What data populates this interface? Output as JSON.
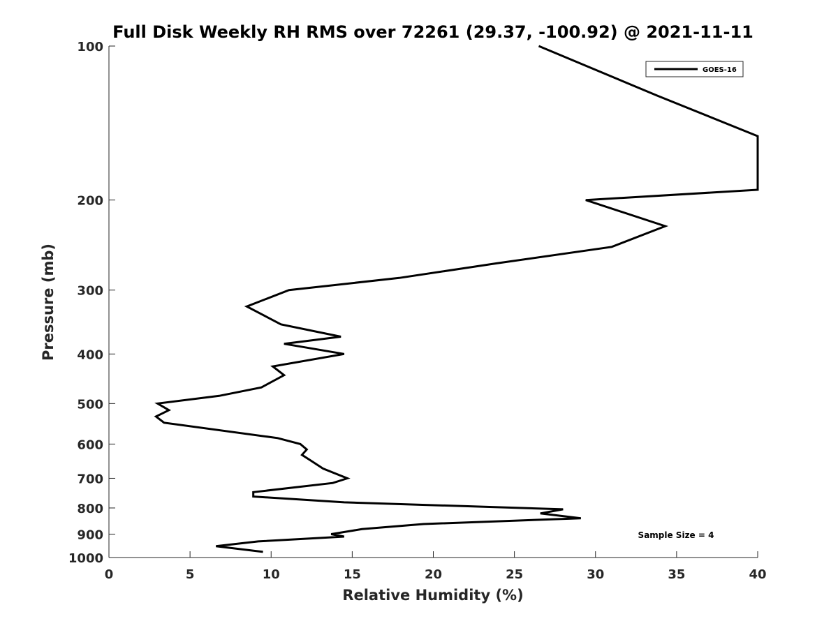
{
  "chart_data": {
    "type": "line",
    "title": "Full Disk Weekly RH RMS over 72261 (29.37, -100.92) @ 2021-11-11",
    "xlabel": "Relative Humidity (%)",
    "ylabel": "Pressure (mb)",
    "xlim": [
      0,
      40
    ],
    "ylim": [
      100,
      1000
    ],
    "y_scale": "log",
    "y_reversed": true,
    "grid": false,
    "x_ticks": [
      0,
      5,
      10,
      15,
      20,
      25,
      30,
      35,
      40
    ],
    "y_ticks": [
      100,
      200,
      300,
      400,
      500,
      600,
      700,
      800,
      900,
      1000
    ],
    "legend": {
      "placement": "top-right",
      "entries": [
        "GOES-16"
      ]
    },
    "annotation": "Sample Size = 4",
    "series": [
      {
        "name": "GOES-16",
        "color": "#000000",
        "points": [
          [
            26.5,
            100
          ],
          [
            33.8,
            125
          ],
          [
            40.0,
            150
          ],
          [
            40.0,
            191
          ],
          [
            29.4,
            200
          ],
          [
            34.3,
            225
          ],
          [
            31.0,
            247
          ],
          [
            23.9,
            266
          ],
          [
            17.9,
            284
          ],
          [
            11.1,
            300
          ],
          [
            8.5,
            323
          ],
          [
            10.6,
            350
          ],
          [
            14.3,
            370
          ],
          [
            10.8,
            382
          ],
          [
            14.5,
            400
          ],
          [
            10.1,
            423
          ],
          [
            10.8,
            440
          ],
          [
            9.4,
            465
          ],
          [
            6.8,
            483
          ],
          [
            3.0,
            500
          ],
          [
            3.7,
            515
          ],
          [
            2.9,
            530
          ],
          [
            3.4,
            545
          ],
          [
            10.4,
            584
          ],
          [
            11.8,
            600
          ],
          [
            12.2,
            615
          ],
          [
            11.9,
            630
          ],
          [
            12.4,
            645
          ],
          [
            13.2,
            670
          ],
          [
            14.7,
            700
          ],
          [
            13.8,
            715
          ],
          [
            8.9,
            745
          ],
          [
            8.9,
            760
          ],
          [
            14.5,
            780
          ],
          [
            28.0,
            805
          ],
          [
            26.6,
            820
          ],
          [
            29.1,
            838
          ],
          [
            19.4,
            860
          ],
          [
            15.6,
            880
          ],
          [
            13.7,
            900
          ],
          [
            14.5,
            910
          ],
          [
            9.2,
            930
          ],
          [
            6.6,
            950
          ],
          [
            9.5,
            975
          ]
        ]
      }
    ]
  }
}
